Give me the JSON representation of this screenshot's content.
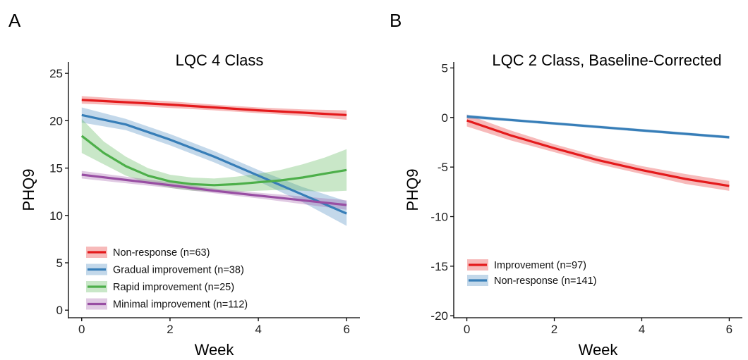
{
  "panels": {
    "a": {
      "letter": "A"
    },
    "b": {
      "letter": "B"
    }
  },
  "chart_data": [
    {
      "type": "line",
      "title": "LQC 4 Class",
      "xlabel": "Week",
      "ylabel": "PHQ9",
      "xlim": [
        -0.3,
        6.3
      ],
      "ylim": [
        -0.8,
        26.2
      ],
      "xticks": [
        0,
        2,
        4,
        6
      ],
      "yticks": [
        0,
        5,
        10,
        15,
        20,
        25
      ],
      "legend_position": "bottom-left",
      "grid": false,
      "series": [
        {
          "name": "Non-response (n=63)",
          "color": "#e41a1c",
          "x": [
            0,
            1,
            2,
            3,
            4,
            5,
            6
          ],
          "y": [
            22.2,
            21.95,
            21.7,
            21.4,
            21.1,
            20.85,
            20.6
          ],
          "lower": [
            21.8,
            21.6,
            21.35,
            21.1,
            20.8,
            20.5,
            20.1
          ],
          "upper": [
            22.6,
            22.3,
            22.05,
            21.7,
            21.4,
            21.2,
            21.1
          ]
        },
        {
          "name": "Gradual improvement (n=38)",
          "color": "#377eb8",
          "x": [
            0,
            1,
            2,
            3,
            4,
            5,
            6
          ],
          "y": [
            20.6,
            19.6,
            18.0,
            16.2,
            14.2,
            12.2,
            10.2
          ],
          "lower": [
            19.8,
            19.0,
            17.4,
            15.6,
            13.6,
            11.4,
            8.9
          ],
          "upper": [
            21.4,
            20.2,
            18.6,
            16.8,
            14.8,
            13.0,
            11.5
          ]
        },
        {
          "name": "Rapid improvement (n=25)",
          "color": "#4daf4a",
          "x": [
            0,
            0.5,
            1,
            1.5,
            2,
            2.5,
            3,
            3.5,
            4,
            4.5,
            5,
            5.5,
            6
          ],
          "y": [
            18.4,
            16.6,
            15.2,
            14.2,
            13.6,
            13.3,
            13.2,
            13.3,
            13.5,
            13.7,
            14.0,
            14.4,
            14.8
          ],
          "lower": [
            16.6,
            15.4,
            14.2,
            13.4,
            12.9,
            12.6,
            12.5,
            12.5,
            12.6,
            12.7,
            12.6,
            12.5,
            12.6
          ],
          "upper": [
            20.2,
            17.8,
            16.2,
            15.0,
            14.3,
            14.0,
            13.9,
            14.1,
            14.4,
            14.8,
            15.4,
            16.1,
            17.0
          ]
        },
        {
          "name": "Minimal improvement (n=112)",
          "color": "#984ea3",
          "x": [
            0,
            1,
            2,
            3,
            4,
            5,
            6
          ],
          "y": [
            14.3,
            13.75,
            13.2,
            12.6,
            12.1,
            11.6,
            11.1
          ],
          "lower": [
            13.9,
            13.4,
            12.9,
            12.35,
            11.8,
            11.2,
            10.6
          ],
          "upper": [
            14.7,
            14.1,
            13.5,
            12.85,
            12.4,
            12.0,
            11.6
          ]
        }
      ]
    },
    {
      "type": "line",
      "title": "LQC 2 Class, Baseline-Corrected",
      "xlabel": "Week",
      "ylabel": "PHQ9",
      "xlim": [
        -0.3,
        6.3
      ],
      "ylim": [
        -20.2,
        5.6
      ],
      "xticks": [
        0,
        2,
        4,
        6
      ],
      "yticks": [
        -20,
        -15,
        -10,
        -5,
        0,
        5
      ],
      "legend_position": "bottom-left",
      "grid": false,
      "series": [
        {
          "name": "Improvement (n=97)",
          "color": "#e41a1c",
          "x": [
            0,
            1,
            2,
            3,
            4,
            5,
            6
          ],
          "y": [
            -0.3,
            -1.8,
            -3.1,
            -4.3,
            -5.3,
            -6.2,
            -6.9
          ],
          "lower": [
            -0.9,
            -2.3,
            -3.5,
            -4.7,
            -5.7,
            -6.7,
            -7.4
          ],
          "upper": [
            0.3,
            -1.3,
            -2.7,
            -3.9,
            -4.9,
            -5.7,
            -6.4
          ]
        },
        {
          "name": "Non-response (n=141)",
          "color": "#377eb8",
          "x": [
            0,
            1,
            2,
            3,
            4,
            5,
            6
          ],
          "y": [
            0.1,
            -0.25,
            -0.6,
            -0.95,
            -1.3,
            -1.65,
            -2.0
          ],
          "lower": [
            -0.1,
            -0.4,
            -0.75,
            -1.1,
            -1.45,
            -1.8,
            -2.15
          ],
          "upper": [
            0.3,
            -0.1,
            -0.45,
            -0.8,
            -1.15,
            -1.5,
            -1.85
          ]
        }
      ]
    }
  ]
}
